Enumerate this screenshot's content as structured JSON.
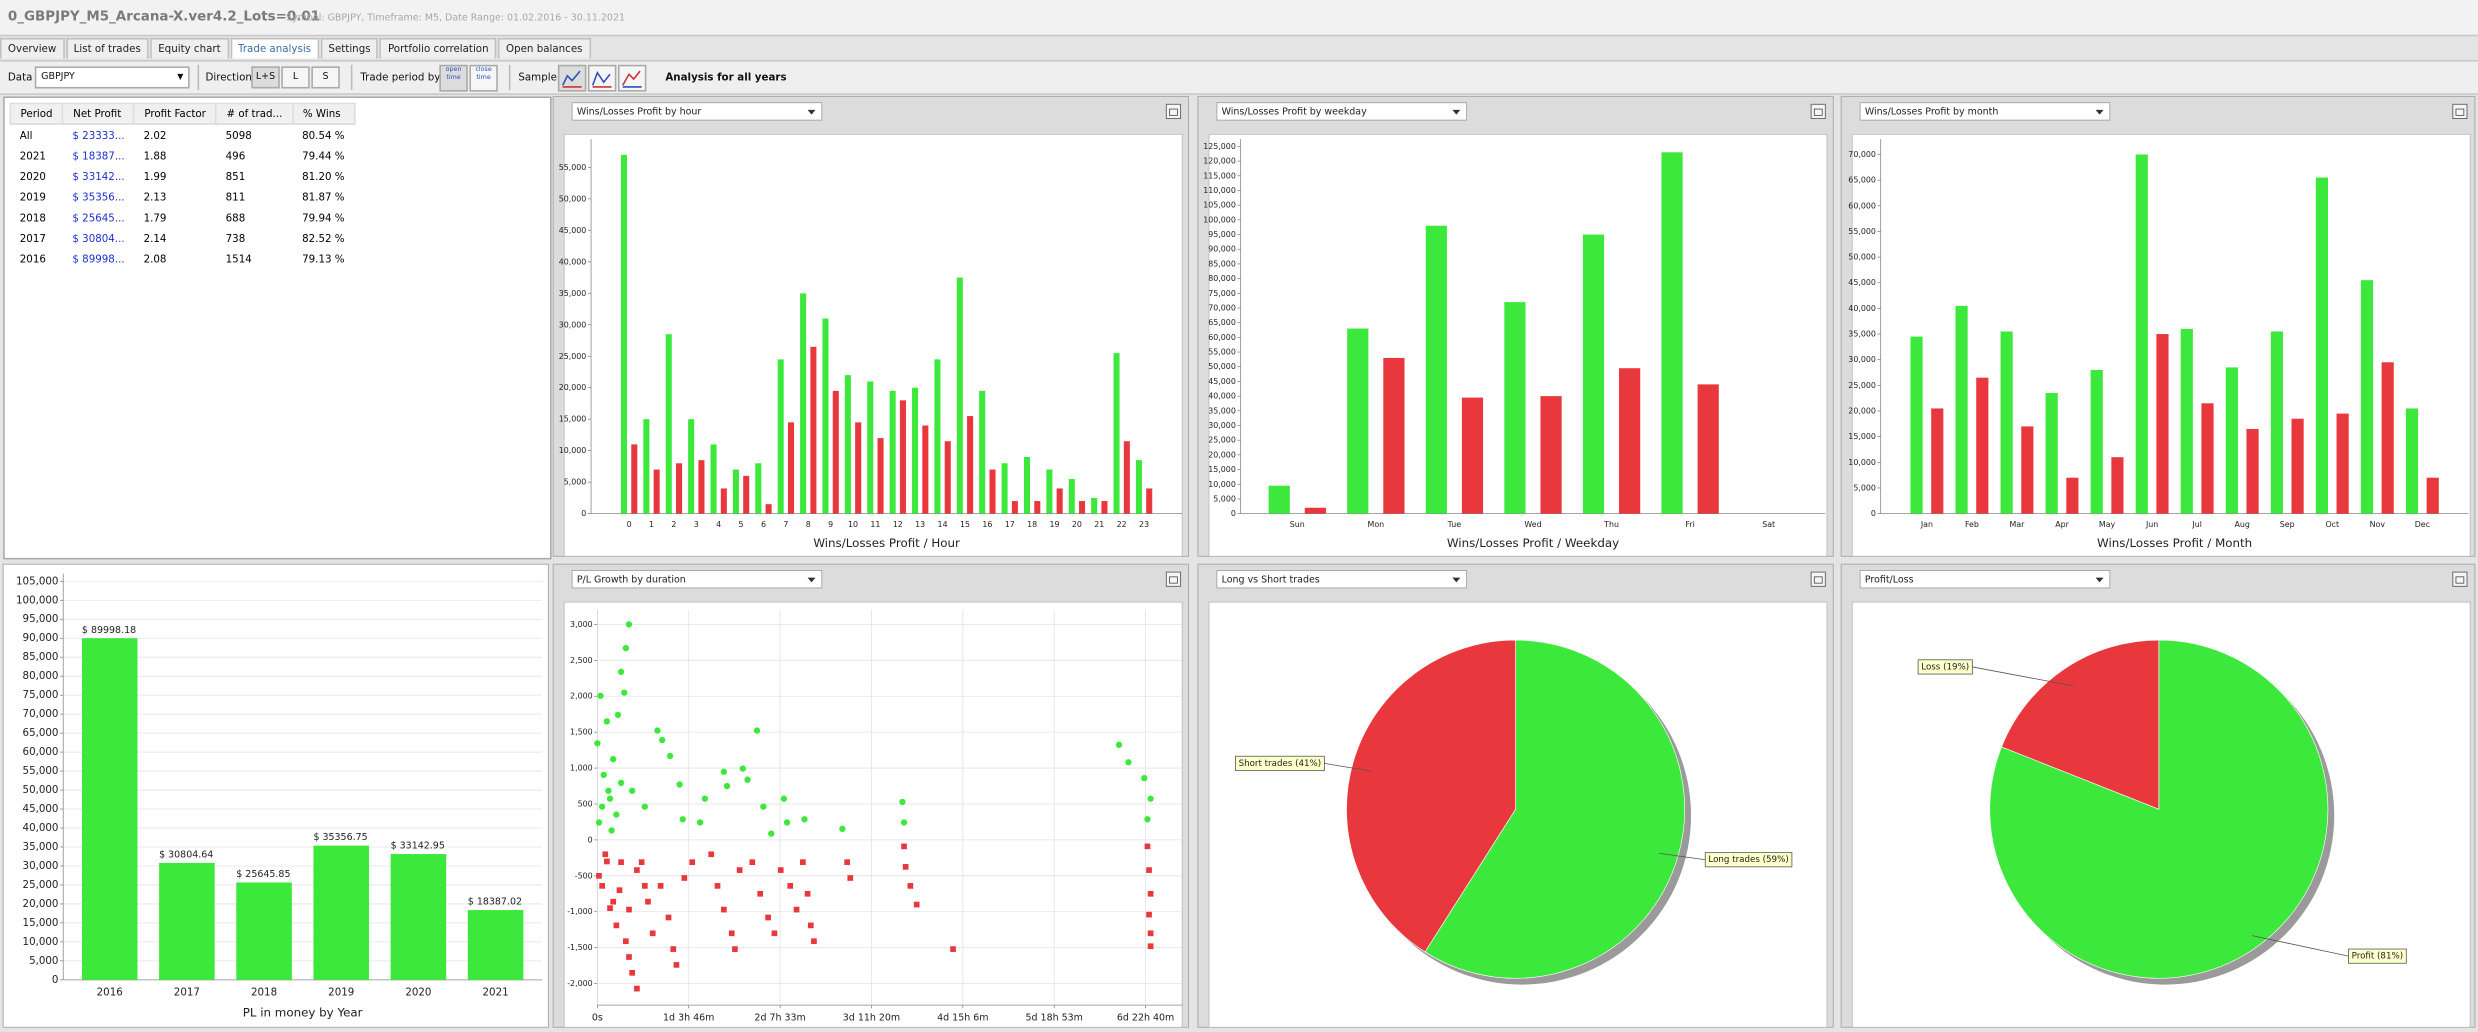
{
  "header": {
    "title": "0_GBPJPY_M5_Arcana-X.ver4.2_Lots=0.01",
    "subtitle": "Symbol: GBPJPY, Timeframe: M5, Date Range: 01.02.2016 - 30.11.2021"
  },
  "tabs": [
    "Overview",
    "List of trades",
    "Equity chart",
    "Trade analysis",
    "Settings",
    "Portfolio correlation",
    "Open balances"
  ],
  "toolbar": {
    "data_label": "Data",
    "data_value": "GBPJPY",
    "direction_label": "Direction",
    "directions": [
      "L+S",
      "L",
      "S"
    ],
    "trade_period_label": "Trade period by",
    "trade_periods": [
      "open time",
      "close time"
    ],
    "sample_label": "Sample",
    "analysis": "Analysis for all years"
  },
  "table": {
    "columns": [
      "Period",
      "Net Profit",
      "Profit Factor",
      "# of trad...",
      "% Wins"
    ],
    "rows": [
      [
        "All",
        "$ 23333...",
        "2.02",
        "5098",
        "80.54 %"
      ],
      [
        "2021",
        "$ 18387...",
        "1.88",
        "496",
        "79.44 %"
      ],
      [
        "2020",
        "$ 33142...",
        "1.99",
        "851",
        "81.20 %"
      ],
      [
        "2019",
        "$ 35356...",
        "2.13",
        "811",
        "81.87 %"
      ],
      [
        "2018",
        "$ 25645...",
        "1.79",
        "688",
        "79.94 %"
      ],
      [
        "2017",
        "$ 30804...",
        "2.14",
        "738",
        "82.52 %"
      ],
      [
        "2016",
        "$ 89998...",
        "2.08",
        "1514",
        "79.13 %"
      ]
    ]
  },
  "chart_data": [
    {
      "type": "bar",
      "title": "Wins/Losses Profit by hour",
      "xlabel": "Wins/Losses Profit / Hour",
      "grid": false,
      "categories": [
        "0",
        "1",
        "2",
        "3",
        "4",
        "5",
        "6",
        "7",
        "8",
        "9",
        "10",
        "11",
        "12",
        "13",
        "14",
        "15",
        "16",
        "17",
        "18",
        "19",
        "20",
        "21",
        "22",
        "23"
      ],
      "series": [
        {
          "color": "#3de83d",
          "values": [
            57000,
            15000,
            28500,
            15000,
            11000,
            7000,
            8000,
            24500,
            35000,
            31000,
            22000,
            21000,
            19500,
            20000,
            24500,
            37500,
            19500,
            8000,
            9000,
            7000,
            5500,
            2500,
            25500,
            8500
          ]
        },
        {
          "color": "#e8383d",
          "values": [
            11000,
            7000,
            8000,
            8500,
            4000,
            6000,
            1500,
            14500,
            26500,
            19500,
            14500,
            12000,
            18000,
            14000,
            11500,
            15500,
            7000,
            2000,
            2000,
            4000,
            2000,
            2000,
            11500,
            4000
          ]
        }
      ],
      "ylim": [
        0,
        59500
      ],
      "yticks": [
        0,
        {
          "value": 5000,
          "label": "5,000"
        },
        {
          "value": 10000,
          "label": "10,000"
        },
        {
          "value": 15000,
          "label": "15,000"
        },
        {
          "value": 20000,
          "label": "20,000"
        },
        {
          "value": 25000,
          "label": "25,000"
        },
        {
          "value": 30000,
          "label": "30,000"
        },
        {
          "value": 35000,
          "label": "35,000"
        },
        {
          "value": 40000,
          "label": "40,000"
        },
        {
          "value": 45000,
          "label": "45,000"
        },
        {
          "value": 50000,
          "label": "50,000"
        },
        {
          "value": 55000,
          "label": "55,000"
        }
      ]
    },
    {
      "type": "bar",
      "title": "Wins/Losses Profit by weekday",
      "xlabel": "Wins/Losses Profit / Weekday",
      "grid": false,
      "categories": [
        "Sun",
        "Mon",
        "Tue",
        "Wed",
        "Thu",
        "Fri",
        "Sat"
      ],
      "series": [
        {
          "color": "#3de83d",
          "values": [
            9500,
            63000,
            98000,
            72000,
            95000,
            123000,
            0
          ]
        },
        {
          "color": "#e8383d",
          "values": [
            2000,
            53000,
            39500,
            40000,
            49500,
            44000,
            0
          ]
        }
      ],
      "ylim": [
        0,
        127500
      ],
      "yticks": [
        0,
        {
          "value": 5000,
          "label": "5,000"
        },
        {
          "value": 10000,
          "label": "10,000"
        },
        {
          "value": 15000,
          "label": "15,000"
        },
        {
          "value": 20000,
          "label": "20,000"
        },
        {
          "value": 25000,
          "label": "25,000"
        },
        {
          "value": 30000,
          "label": "30,000"
        },
        {
          "value": 35000,
          "label": "35,000"
        },
        {
          "value": 40000,
          "label": "40,000"
        },
        {
          "value": 45000,
          "label": "45,000"
        },
        {
          "value": 50000,
          "label": "50,000"
        },
        {
          "value": 55000,
          "label": "55,000"
        },
        {
          "value": 60000,
          "label": "60,000"
        },
        {
          "value": 65000,
          "label": "65,000"
        },
        {
          "value": 70000,
          "label": "70,000"
        },
        {
          "value": 75000,
          "label": "75,000"
        },
        {
          "value": 80000,
          "label": "80,000"
        },
        {
          "value": 85000,
          "label": "85,000"
        },
        {
          "value": 90000,
          "label": "90,000"
        },
        {
          "value": 95000,
          "label": "95,000"
        },
        {
          "value": 100000,
          "label": "100,000"
        },
        {
          "value": 105000,
          "label": "105,000"
        },
        {
          "value": 110000,
          "label": "110,000"
        },
        {
          "value": 115000,
          "label": "115,000"
        },
        {
          "value": 120000,
          "label": "120,000"
        },
        {
          "value": 125000,
          "label": "125,000"
        }
      ]
    },
    {
      "type": "bar",
      "title": "Wins/Losses Profit by month",
      "xlabel": "Wins/Losses Profit / Month",
      "grid": false,
      "categories": [
        "Jan",
        "Feb",
        "Mar",
        "Apr",
        "May",
        "Jun",
        "Jul",
        "Aug",
        "Sep",
        "Oct",
        "Nov",
        "Dec"
      ],
      "series": [
        {
          "color": "#3de83d",
          "values": [
            34500,
            40500,
            35500,
            23500,
            28000,
            70000,
            36000,
            28500,
            35500,
            65500,
            45500,
            20500
          ]
        },
        {
          "color": "#e8383d",
          "values": [
            20500,
            26500,
            17000,
            7000,
            11000,
            35000,
            21500,
            16500,
            18500,
            19500,
            29500,
            7000
          ]
        }
      ],
      "ylim": [
        0,
        73000
      ],
      "yticks": [
        0,
        {
          "value": 5000,
          "label": "5,000"
        },
        {
          "value": 10000,
          "label": "10,000"
        },
        {
          "value": 15000,
          "label": "15,000"
        },
        {
          "value": 20000,
          "label": "20,000"
        },
        {
          "value": 25000,
          "label": "25,000"
        },
        {
          "value": 30000,
          "label": "30,000"
        },
        {
          "value": 35000,
          "label": "35,000"
        },
        {
          "value": 40000,
          "label": "40,000"
        },
        {
          "value": 45000,
          "label": "45,000"
        },
        {
          "value": 50000,
          "label": "50,000"
        },
        {
          "value": 55000,
          "label": "55,000"
        },
        {
          "value": 60000,
          "label": "60,000"
        },
        {
          "value": 65000,
          "label": "65,000"
        },
        {
          "value": 70000,
          "label": "70,000"
        }
      ]
    },
    {
      "type": "bar",
      "xlabel": "PL in money by Year",
      "grid": true,
      "color": "#3de83d",
      "categories": [
        "2016",
        "2017",
        "2018",
        "2019",
        "2020",
        "2021"
      ],
      "values": [
        89998.18,
        30804.64,
        25645.85,
        35356.75,
        33142.95,
        18387.02
      ],
      "value_labels": [
        "$ 89998.18",
        "$ 30804.64",
        "$ 25645.85",
        "$ 35356.75",
        "$ 33142.95",
        "$ 18387.02"
      ],
      "ylim": [
        0,
        107000
      ],
      "yticks": [
        0,
        {
          "value": 5000,
          "label": "5,000"
        },
        {
          "value": 10000,
          "label": "10,000"
        },
        {
          "value": 15000,
          "label": "15,000"
        },
        {
          "value": 20000,
          "label": "20,000"
        },
        {
          "value": 25000,
          "label": "25,000"
        },
        {
          "value": 30000,
          "label": "30,000"
        },
        {
          "value": 35000,
          "label": "35,000"
        },
        {
          "value": 40000,
          "label": "40,000"
        },
        {
          "value": 45000,
          "label": "45,000"
        },
        {
          "value": 50000,
          "label": "50,000"
        },
        {
          "value": 55000,
          "label": "55,000"
        },
        {
          "value": 60000,
          "label": "60,000"
        },
        {
          "value": 65000,
          "label": "65,000"
        },
        {
          "value": 70000,
          "label": "70,000"
        },
        {
          "value": 75000,
          "label": "75,000"
        },
        {
          "value": 80000,
          "label": "80,000"
        },
        {
          "value": 85000,
          "label": "85,000"
        },
        {
          "value": 90000,
          "label": "90,000"
        },
        {
          "value": 95000,
          "label": "95,000"
        },
        {
          "value": 100000,
          "label": "100,000"
        },
        {
          "value": 105000,
          "label": "105,000"
        }
      ]
    },
    {
      "type": "scatter",
      "title": "P/L Growth by duration",
      "grid": true,
      "series": [
        {
          "color": "#3de83d",
          "marker": "circle",
          "x": [
            34600,
            31140,
            25950,
            29410,
            3460,
            10380,
            22490,
            0,
            17300,
            6920,
            25950,
            38060,
            13840,
            20760,
            51900,
            65740,
            70930,
            79580,
            89960,
            93420,
            112450,
            117640,
            138400,
            141860,
            159160,
            164350,
            174730,
            181650,
            190300,
            204140,
            207600,
            226630,
            268150,
            333890,
            335620,
            570900,
            581280,
            598580,
            602040,
            605500,
            1730,
            5190,
            12110,
            15570
          ],
          "values": [
            3000,
            2670,
            2340,
            2050,
            2007,
            1650,
            1740,
            1345,
            1125,
            905,
            794,
            684,
            574,
            353,
            463,
            1522,
            1390,
            1170,
            772,
            287,
            243,
            574,
            949,
            750,
            993,
            838,
            1522,
            463,
            88,
            574,
            243,
            287,
            154,
            529,
            243,
            1324,
            1081,
            860,
            287,
            574,
            243,
            463,
            684,
            132
          ]
        },
        {
          "color": "#e8383d",
          "marker": "square",
          "x": [
            8650,
            25950,
            43250,
            5190,
            17300,
            34600,
            51900,
            20760,
            31140,
            34600,
            38060,
            43250,
            48440,
            55360,
            60550,
            69200,
            77850,
            83040,
            86500,
            95150,
            103800,
            124560,
            131480,
            138400,
            147050,
            150510,
            155700,
            169540,
            178190,
            186840,
            193760,
            200680,
            211060,
            217980,
            224900,
            230090,
            233550,
            237010,
            273340,
            276800,
            335620,
            337350,
            342540,
            349460,
            389250,
            602040,
            603770,
            605500,
            603770,
            605500,
            605500,
            1730,
            10380,
            24220,
            13840
          ],
          "values": [
            -200,
            -310,
            -420,
            -640,
            -860,
            -970,
            -640,
            -1190,
            -1410,
            -1630,
            -1850,
            -2070,
            -310,
            -860,
            -1300,
            -640,
            -1080,
            -1520,
            -1740,
            -530,
            -310,
            -200,
            -640,
            -970,
            -1300,
            -1520,
            -420,
            -310,
            -750,
            -1080,
            -1300,
            -420,
            -640,
            -970,
            -310,
            -750,
            -1190,
            -1410,
            -310,
            -530,
            -90,
            -375,
            -640,
            -900,
            -1520,
            -90,
            -420,
            -750,
            -1040,
            -1300,
            -1480,
            -500,
            -300,
            -700,
            -950
          ]
        }
      ],
      "xlim": [
        0,
        640000
      ],
      "xticks": [
        {
          "value": 0,
          "label": "0s"
        },
        {
          "value": 99960,
          "label": "1d 3h 46m"
        },
        {
          "value": 199980,
          "label": "2d 7h 33m"
        },
        {
          "value": 300000,
          "label": "3d 11h 20m"
        },
        {
          "value": 399960,
          "label": "4d 15h 6m"
        },
        {
          "value": 499980,
          "label": "5d 18h 53m"
        },
        {
          "value": 600000,
          "label": "6d 22h 40m"
        }
      ],
      "ylim": [
        -2300,
        3200
      ],
      "yticks": [
        {
          "value": -2000,
          "label": "-2,000"
        },
        {
          "value": -1500,
          "label": "-1,500"
        },
        {
          "value": -1000,
          "label": "-1,000"
        },
        -500,
        0,
        500,
        {
          "value": 1000,
          "label": "1,000"
        },
        {
          "value": 1500,
          "label": "1,500"
        },
        {
          "value": 2000,
          "label": "2,000"
        },
        {
          "value": 2500,
          "label": "2,500"
        },
        {
          "value": 3000,
          "label": "3,000"
        }
      ]
    },
    {
      "type": "pie",
      "title": "Long vs Short trades",
      "values": [
        59,
        41
      ],
      "value_labels": [
        "Long trades (59%)",
        "Short trades (41%)"
      ],
      "colors": [
        "#3de83d",
        "#e8383d"
      ]
    },
    {
      "type": "pie",
      "title": "Profit/Loss",
      "values": [
        81,
        19
      ],
      "value_labels": [
        "Profit (81%)",
        "Loss (19%)"
      ],
      "colors": [
        "#3de83d",
        "#e8383d"
      ]
    }
  ]
}
